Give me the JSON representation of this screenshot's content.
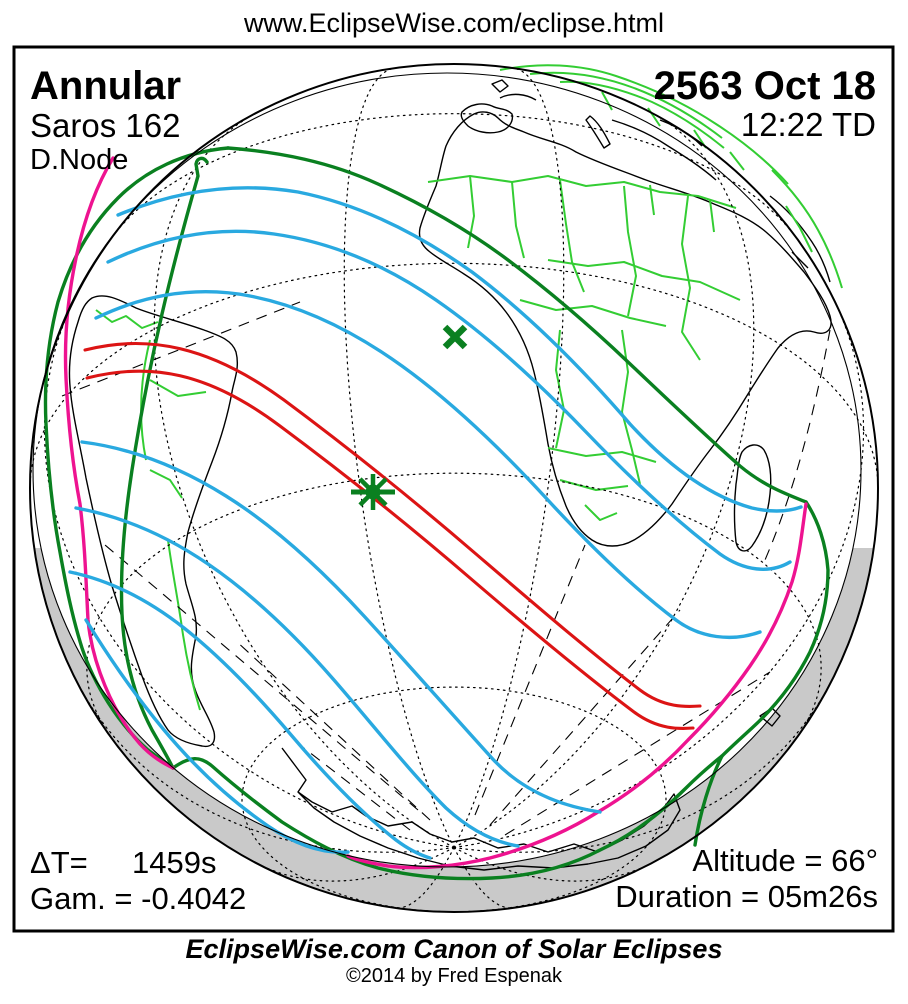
{
  "header": {
    "url": "www.EclipseWise.com/eclipse.html"
  },
  "map_panel": {
    "eclipse_type": "Annular",
    "saros": "Saros 162",
    "node": "D.Node",
    "date": "2563 Oct 18",
    "time": "12:22 TD",
    "delta_t_key": "ΔT=",
    "delta_t_value": "1459s",
    "gamma": "Gam. = -0.4042",
    "altitude": "Altitude = 66°",
    "duration": "Duration = 05m26s"
  },
  "footer": {
    "title": "EclipseWise.com Canon of Solar Eclipses",
    "copyright": "©2014 by Fred Espenak"
  },
  "colors": {
    "isoline": "#29A9E0",
    "central": "#DC1414",
    "limit": "#0A8020",
    "riseset": "#EE1390",
    "border": "#33CD33",
    "coast": "#000000",
    "night": "#C9C9C9"
  }
}
